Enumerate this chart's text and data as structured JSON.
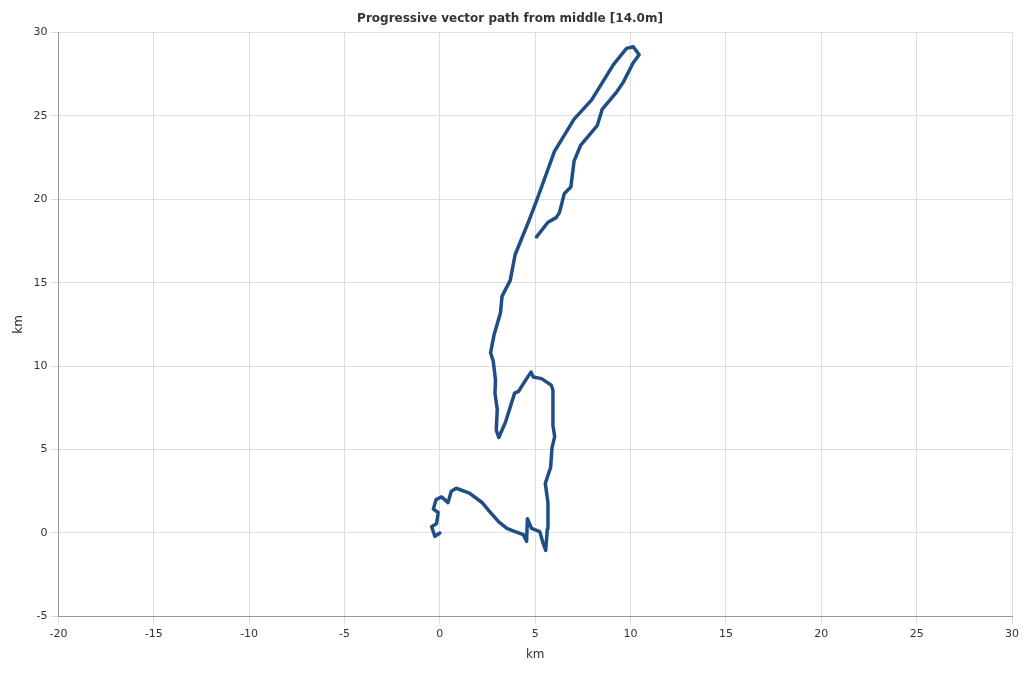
{
  "chart_data": {
    "type": "line",
    "title": "Progressive vector path from middle [14.0m]",
    "xlabel": "km",
    "ylabel": "km",
    "xlim": [
      -20,
      30
    ],
    "xticks": [
      -20,
      -15,
      -10,
      -5,
      0,
      5,
      10,
      15,
      20,
      25,
      30
    ],
    "ylim": [
      -5,
      30
    ],
    "yticks": [
      -5,
      0,
      5,
      10,
      15,
      20,
      25,
      30
    ],
    "grid": true,
    "legend": false,
    "marker": "none",
    "line_style": "solid",
    "series": [
      {
        "color": "#1f4e86",
        "x": [
          0,
          -0.26,
          -0.43,
          -0.17,
          -0.09,
          -0.34,
          -0.2,
          0.09,
          0.43,
          0.6,
          0.86,
          1.55,
          2.23,
          2.58,
          3.09,
          3.52,
          3.95,
          4.38,
          4.55,
          4.59,
          4.81,
          5.24,
          5.41,
          5.55,
          5.64,
          5.67,
          5.53,
          5.81,
          5.88,
          6.02,
          5.93,
          5.93,
          5.84,
          5.33,
          4.9,
          4.78,
          4.55,
          4.12,
          3.92,
          3.44,
          3.09,
          2.96,
          3.01,
          2.89,
          2.92,
          2.8,
          2.66,
          2.84,
          3.18,
          3.26,
          3.69,
          3.95,
          4.64,
          5.15,
          6.01,
          7.04,
          7.96,
          9.11,
          9.79,
          10.14,
          10.45,
          10.14,
          9.62,
          9.28,
          8.51,
          8.25,
          7.39,
          7.04,
          6.87,
          6.53,
          6.27,
          6.1,
          5.67,
          5.07
        ],
        "values": [
          0,
          -0.2,
          0.37,
          0.56,
          1.23,
          1.43,
          2.0,
          2.16,
          1.82,
          2.5,
          2.68,
          2.39,
          1.81,
          1.33,
          0.66,
          0.27,
          0.08,
          -0.1,
          -0.5,
          0.85,
          0.27,
          0.08,
          -0.6,
          -1.04,
          0.27,
          1.81,
          2.97,
          3.94,
          5.1,
          5.78,
          6.45,
          8.57,
          8.86,
          9.25,
          9.35,
          9.64,
          9.25,
          8.48,
          8.38,
          6.64,
          5.72,
          6.16,
          7.42,
          8.38,
          9.15,
          10.3,
          10.8,
          11.86,
          13.2,
          14.18,
          15.14,
          16.69,
          18.62,
          20.16,
          22.87,
          24.8,
          25.96,
          28.08,
          29.04,
          29.14,
          28.66,
          28.18,
          27.02,
          26.44,
          25.38,
          24.41,
          23.25,
          22.29,
          20.74,
          20.35,
          19.2,
          18.9,
          18.62,
          17.75
        ]
      }
    ]
  }
}
